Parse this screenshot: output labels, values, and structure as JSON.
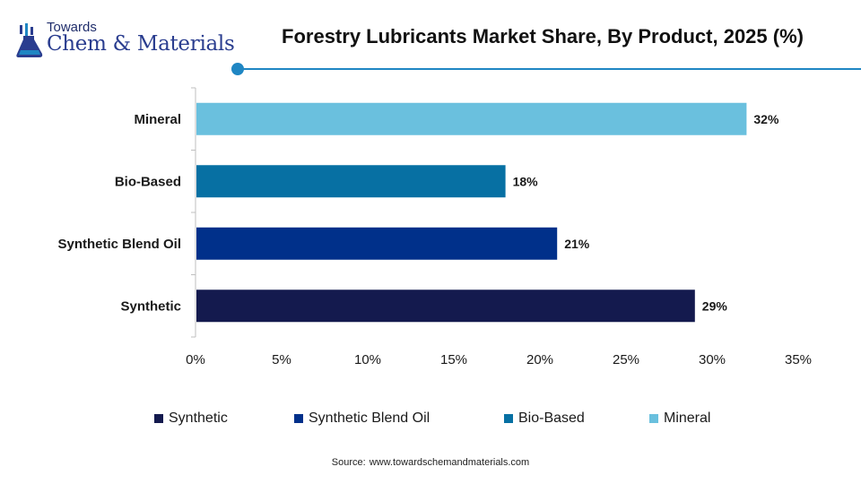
{
  "brand": {
    "top": "Towards",
    "main": "Chem & Materials"
  },
  "colors": {
    "accent": "#1f86c3",
    "synthetic": "#141a4e",
    "synthetic_blend_oil": "#00308a",
    "bio_based": "#0770a3",
    "mineral": "#6ac0de"
  },
  "chart_data": {
    "type": "bar",
    "orientation": "horizontal",
    "title": "Forestry Lubricants Market Share, By Product, 2025 (%)",
    "categories": [
      "Mineral",
      "Bio-Based",
      "Synthetic Blend Oil",
      "Synthetic"
    ],
    "values": [
      32,
      18,
      21,
      29
    ],
    "data_labels": [
      "32%",
      "18%",
      "21%",
      "29%"
    ],
    "bar_colors": [
      "#6ac0de",
      "#0770a3",
      "#00308a",
      "#141a4e"
    ],
    "xlim": [
      0,
      35
    ],
    "xticks": [
      0,
      5,
      10,
      15,
      20,
      25,
      30,
      35
    ],
    "xtick_labels": [
      "0%",
      "5%",
      "10%",
      "15%",
      "20%",
      "25%",
      "30%",
      "35%"
    ],
    "grid": false,
    "legend_position": "bottom",
    "legend": [
      {
        "label": "Synthetic",
        "color": "#141a4e"
      },
      {
        "label": "Synthetic Blend Oil",
        "color": "#00308a"
      },
      {
        "label": "Bio-Based",
        "color": "#0770a3"
      },
      {
        "label": "Mineral",
        "color": "#6ac0de"
      }
    ]
  },
  "source": {
    "label": "Source:",
    "value": "www.towardschemandmaterials.com"
  }
}
